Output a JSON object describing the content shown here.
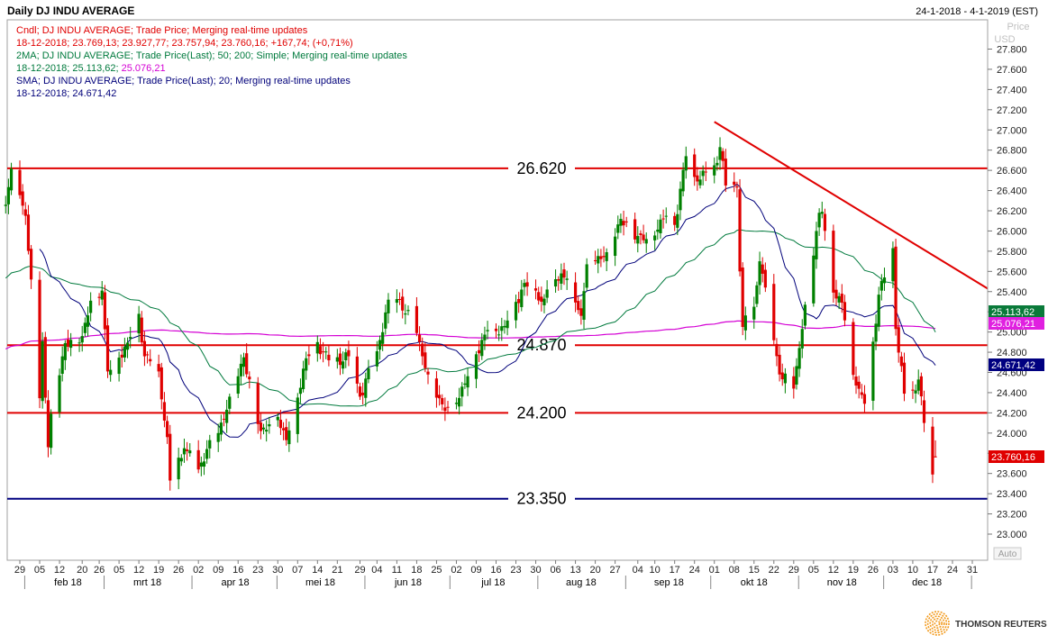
{
  "header": {
    "title": "Daily DJ INDU AVERAGE",
    "range": "24-1-2018 - 4-1-2019 (EST)",
    "price_label": "Price",
    "currency_label": "USD"
  },
  "legend": [
    {
      "text": "Cndl; DJ INDU AVERAGE; Trade Price; Merging real-time updates",
      "color": "#e00000"
    },
    {
      "text": "18-12-2018; 23.769,13; 23.927,77; 23.757,94; 23.760,16; +167,74; (+0,71%)",
      "color": "#e00000"
    },
    {
      "text": "2MA; DJ INDU AVERAGE; Trade Price(Last);  50; 200; Simple;  Merging real-time updates",
      "color": "#007a3d"
    },
    {
      "text": "18-12-2018; ",
      "color": "#007a3d",
      "extra": [
        {
          "text": "25.113,62; ",
          "color": "#007a3d"
        },
        {
          "text": "25.076,21",
          "color": "#d400d4"
        }
      ]
    },
    {
      "text": "SMA; DJ INDU AVERAGE; Trade Price(Last);  20;  Merging real-time updates",
      "color": "#00007a"
    },
    {
      "text": "18-12-2018; 24.671,42",
      "color": "#00007a"
    }
  ],
  "colors": {
    "up": "#008000",
    "down": "#e00000",
    "ma50": "#007a3d",
    "ma200": "#d400d4",
    "sma20": "#00007a",
    "level_red": "#e00000",
    "level_navy": "#000080"
  },
  "badges": [
    {
      "text": "25.113,62",
      "value": 25113.62,
      "bg": "#0a7a3a",
      "fg": "#ffffff"
    },
    {
      "text": "25.076,21",
      "value": 25076.21,
      "bg": "#e020e0",
      "fg": "#ffffff"
    },
    {
      "text": "24.671,42",
      "value": 24671.42,
      "bg": "#000080",
      "fg": "#ffffff"
    },
    {
      "text": "23.760,16",
      "value": 23760.16,
      "bg": "#e00000",
      "fg": "#ffffff"
    }
  ],
  "auto_label": "Auto",
  "brand": {
    "name": "THOMSON REUTERS"
  },
  "chart_data": {
    "type": "candlestick",
    "title": "Daily DJ INDU AVERAGE",
    "ylabel": "Price USD",
    "ylim": [
      22850,
      28050
    ],
    "y_ticks": [
      "23.000",
      "23.200",
      "23.400",
      "23.600",
      "23.800",
      "24.000",
      "24.200",
      "24.400",
      "24.600",
      "24.800",
      "25.000",
      "25.200",
      "25.400",
      "25.600",
      "25.800",
      "26.000",
      "26.200",
      "26.400",
      "26.600",
      "26.800",
      "27.000",
      "27.200",
      "27.400",
      "27.600",
      "27.800"
    ],
    "x_range": [
      "2018-01-29",
      "2018-12-31"
    ],
    "x_ticks": [
      {
        "label": "29",
        "date": "2018-01-29"
      },
      {
        "label": "05",
        "date": "2018-02-05"
      },
      {
        "label": "12",
        "date": "2018-02-12"
      },
      {
        "label": "20",
        "date": "2018-02-20"
      },
      {
        "label": "26",
        "date": "2018-02-26"
      },
      {
        "label": "05",
        "date": "2018-03-05"
      },
      {
        "label": "12",
        "date": "2018-03-12"
      },
      {
        "label": "19",
        "date": "2018-03-19"
      },
      {
        "label": "26",
        "date": "2018-03-26"
      },
      {
        "label": "02",
        "date": "2018-04-02"
      },
      {
        "label": "09",
        "date": "2018-04-09"
      },
      {
        "label": "16",
        "date": "2018-04-16"
      },
      {
        "label": "23",
        "date": "2018-04-23"
      },
      {
        "label": "30",
        "date": "2018-04-30"
      },
      {
        "label": "07",
        "date": "2018-05-07"
      },
      {
        "label": "14",
        "date": "2018-05-14"
      },
      {
        "label": "21",
        "date": "2018-05-21"
      },
      {
        "label": "29",
        "date": "2018-05-29"
      },
      {
        "label": "04",
        "date": "2018-06-04"
      },
      {
        "label": "11",
        "date": "2018-06-11"
      },
      {
        "label": "18",
        "date": "2018-06-18"
      },
      {
        "label": "25",
        "date": "2018-06-25"
      },
      {
        "label": "02",
        "date": "2018-07-02"
      },
      {
        "label": "09",
        "date": "2018-07-09"
      },
      {
        "label": "16",
        "date": "2018-07-16"
      },
      {
        "label": "23",
        "date": "2018-07-23"
      },
      {
        "label": "30",
        "date": "2018-07-30"
      },
      {
        "label": "06",
        "date": "2018-08-06"
      },
      {
        "label": "13",
        "date": "2018-08-13"
      },
      {
        "label": "20",
        "date": "2018-08-20"
      },
      {
        "label": "27",
        "date": "2018-08-27"
      },
      {
        "label": "04",
        "date": "2018-09-04"
      },
      {
        "label": "10",
        "date": "2018-09-10"
      },
      {
        "label": "17",
        "date": "2018-09-17"
      },
      {
        "label": "24",
        "date": "2018-09-24"
      },
      {
        "label": "01",
        "date": "2018-10-01"
      },
      {
        "label": "08",
        "date": "2018-10-08"
      },
      {
        "label": "15",
        "date": "2018-10-15"
      },
      {
        "label": "22",
        "date": "2018-10-22"
      },
      {
        "label": "29",
        "date": "2018-10-29"
      },
      {
        "label": "05",
        "date": "2018-11-05"
      },
      {
        "label": "12",
        "date": "2018-11-12"
      },
      {
        "label": "19",
        "date": "2018-11-19"
      },
      {
        "label": "26",
        "date": "2018-11-26"
      },
      {
        "label": "03",
        "date": "2018-12-03"
      },
      {
        "label": "10",
        "date": "2018-12-10"
      },
      {
        "label": "17",
        "date": "2018-12-17"
      },
      {
        "label": "24",
        "date": "2018-12-24"
      },
      {
        "label": "31",
        "date": "2018-12-31"
      }
    ],
    "months": [
      {
        "label": "feb 18",
        "date": "2018-02-15"
      },
      {
        "label": "mrt 18",
        "date": "2018-03-15"
      },
      {
        "label": "apr 18",
        "date": "2018-04-15"
      },
      {
        "label": "mei 18",
        "date": "2018-05-15"
      },
      {
        "label": "jun 18",
        "date": "2018-06-15"
      },
      {
        "label": "jul 18",
        "date": "2018-07-15"
      },
      {
        "label": "aug 18",
        "date": "2018-08-15"
      },
      {
        "label": "sep 18",
        "date": "2018-09-15"
      },
      {
        "label": "okt 18",
        "date": "2018-10-15"
      },
      {
        "label": "nov 18",
        "date": "2018-11-15"
      },
      {
        "label": "dec 18",
        "date": "2018-12-15"
      }
    ],
    "levels": [
      {
        "value": 26620,
        "label": "26.620",
        "color": "#e00000"
      },
      {
        "value": 24870,
        "label": "24.870",
        "color": "#e00000"
      },
      {
        "value": 24200,
        "label": "24.200",
        "color": "#e00000"
      },
      {
        "value": 23350,
        "label": "23.350",
        "color": "#000080"
      }
    ],
    "trendline": {
      "start": {
        "date": "2018-10-01",
        "value": 27080
      },
      "end": {
        "date": "2018-12-31",
        "value": 25430
      },
      "color": "#e00000"
    },
    "close_anchors": [
      [
        "2018-01-24",
        26260
      ],
      [
        "2018-01-26",
        26616
      ],
      [
        "2018-01-31",
        26150
      ],
      [
        "2018-02-02",
        25520
      ],
      [
        "2018-02-05",
        24345
      ],
      [
        "2018-02-06",
        24910
      ],
      [
        "2018-02-08",
        23860
      ],
      [
        "2018-02-09",
        24190
      ],
      [
        "2018-02-14",
        24890
      ],
      [
        "2018-02-20",
        24960
      ],
      [
        "2018-02-23",
        25310
      ],
      [
        "2018-02-27",
        25410
      ],
      [
        "2018-03-01",
        24610
      ],
      [
        "2018-03-08",
        24895
      ],
      [
        "2018-03-12",
        25180
      ],
      [
        "2018-03-14",
        24760
      ],
      [
        "2018-03-19",
        24610
      ],
      [
        "2018-03-22",
        23960
      ],
      [
        "2018-03-23",
        23530
      ],
      [
        "2018-03-28",
        23850
      ],
      [
        "2018-04-02",
        23640
      ],
      [
        "2018-04-06",
        23930
      ],
      [
        "2018-04-09",
        24000
      ],
      [
        "2018-04-13",
        24360
      ],
      [
        "2018-04-18",
        24750
      ],
      [
        "2018-04-24",
        24020
      ],
      [
        "2018-04-30",
        24160
      ],
      [
        "2018-05-03",
        23930
      ],
      [
        "2018-05-10",
        24740
      ],
      [
        "2018-05-14",
        24900
      ],
      [
        "2018-05-18",
        24720
      ],
      [
        "2018-05-25",
        24760
      ],
      [
        "2018-05-29",
        24360
      ],
      [
        "2018-06-04",
        24810
      ],
      [
        "2018-06-08",
        25320
      ],
      [
        "2018-06-12",
        25320
      ],
      [
        "2018-06-18",
        24990
      ],
      [
        "2018-06-22",
        24580
      ],
      [
        "2018-06-28",
        24220
      ],
      [
        "2018-07-02",
        24300
      ],
      [
        "2018-07-09",
        24780
      ],
      [
        "2018-07-13",
        25020
      ],
      [
        "2018-07-19",
        25060
      ],
      [
        "2018-07-25",
        25420
      ],
      [
        "2018-07-27",
        25450
      ],
      [
        "2018-08-02",
        25330
      ],
      [
        "2018-08-08",
        25580
      ],
      [
        "2018-08-15",
        25160
      ],
      [
        "2018-08-17",
        25670
      ],
      [
        "2018-08-24",
        25790
      ],
      [
        "2018-08-29",
        26120
      ],
      [
        "2018-09-04",
        25950
      ],
      [
        "2018-09-07",
        25920
      ],
      [
        "2018-09-14",
        26150
      ],
      [
        "2018-09-17",
        26060
      ],
      [
        "2018-09-21",
        26740
      ],
      [
        "2018-09-25",
        26490
      ],
      [
        "2018-10-01",
        26650
      ],
      [
        "2018-10-03",
        26830
      ],
      [
        "2018-10-05",
        26450
      ],
      [
        "2018-10-09",
        26430
      ],
      [
        "2018-10-10",
        25600
      ],
      [
        "2018-10-11",
        25050
      ],
      [
        "2018-10-15",
        25250
      ],
      [
        "2018-10-17",
        25700
      ],
      [
        "2018-10-19",
        25440
      ],
      [
        "2018-10-24",
        24580
      ],
      [
        "2018-10-29",
        24440
      ],
      [
        "2018-11-02",
        25270
      ],
      [
        "2018-11-07",
        26180
      ],
      [
        "2018-11-08",
        26190
      ],
      [
        "2018-11-12",
        25390
      ],
      [
        "2018-11-15",
        25290
      ],
      [
        "2018-11-20",
        24470
      ],
      [
        "2018-11-23",
        24290
      ],
      [
        "2018-11-28",
        25370
      ],
      [
        "2018-11-30",
        25540
      ],
      [
        "2018-12-03",
        25830
      ],
      [
        "2018-12-04",
        25030
      ],
      [
        "2018-12-07",
        24390
      ],
      [
        "2018-12-10",
        24420
      ],
      [
        "2018-12-12",
        24530
      ],
      [
        "2018-12-14",
        24100
      ],
      [
        "2018-12-17",
        23590
      ],
      [
        "2018-12-18",
        23760
      ]
    ],
    "ohlc_last": {
      "date": "2018-12-18",
      "open": 23769.13,
      "high": 23927.77,
      "low": 23757.94,
      "close": 23760.16,
      "change": 167.74,
      "change_pct": 0.71
    },
    "series": [
      {
        "name": "SMA 20",
        "color": "#00007a",
        "last": 24671.42
      },
      {
        "name": "MA 50",
        "color": "#007a3d",
        "last": 25113.62
      },
      {
        "name": "MA 200",
        "color": "#d400d4",
        "last": 25076.21
      }
    ]
  }
}
